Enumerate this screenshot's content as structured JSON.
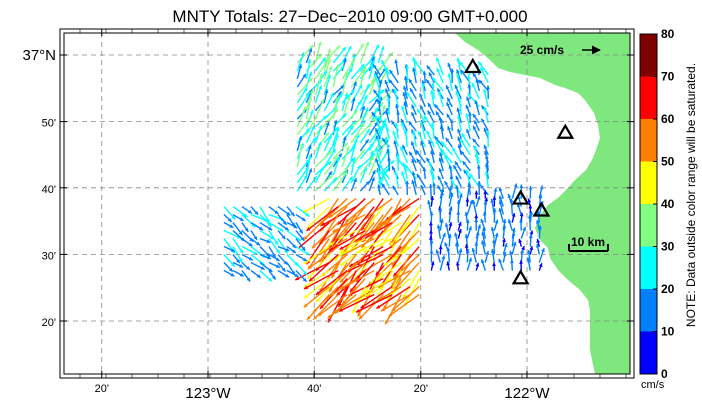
{
  "title": "MNTY Totals: 27−Dec−2010 09:00 GMT+0.000",
  "map": {
    "lon_ticks": [
      {
        "lon": -123.333,
        "label": "20'",
        "major": false
      },
      {
        "lon": -123.0,
        "label": "123°W",
        "major": true
      },
      {
        "lon": -122.667,
        "label": "40'",
        "major": false
      },
      {
        "lon": -122.333,
        "label": "20'",
        "major": false
      },
      {
        "lon": -122.0,
        "label": "122°W",
        "major": true
      }
    ],
    "lat_ticks": [
      {
        "lat": 37.0,
        "label": "37°N",
        "major": true
      },
      {
        "lat": 36.833,
        "label": "50'",
        "major": false
      },
      {
        "lat": 36.667,
        "label": "40'",
        "major": false
      },
      {
        "lat": 36.5,
        "label": "30'",
        "major": false
      },
      {
        "lat": 36.333,
        "label": "20'",
        "major": false
      }
    ],
    "land_color": "#7ee87e",
    "grid": true,
    "reference_vector": {
      "label": "25 cm/s",
      "speed": 25
    },
    "scale_bar": {
      "label": "10 km",
      "km": 10
    },
    "stations": [
      {
        "lon": -122.17,
        "lat": 36.97
      },
      {
        "lon": -121.88,
        "lat": 36.805
      },
      {
        "lon": -122.02,
        "lat": 36.64
      },
      {
        "lon": -121.955,
        "lat": 36.61
      },
      {
        "lon": -122.02,
        "lat": 36.44
      }
    ]
  },
  "colorbar": {
    "ticks": [
      "0",
      "10",
      "20",
      "30",
      "40",
      "50",
      "60",
      "70",
      "80"
    ],
    "colors": [
      "#0000ff",
      "#0080ff",
      "#00ffff",
      "#80ff80",
      "#ffff00",
      "#ff8000",
      "#ff0000",
      "#800000"
    ],
    "unit": "cm/s",
    "note": "NOTE: Data outside color range will be saturated."
  },
  "vector_field": {
    "note": "regional flow: mostly northwest-ward near shore, strong southeast flow offshore",
    "regions": [
      {
        "lon_range": [
          -122.62,
          -122.33
        ],
        "lat_range": [
          36.39,
          36.64
        ],
        "speed": [
          45,
          65
        ],
        "dir_deg": 135
      },
      {
        "lon_range": [
          -122.72,
          -122.46
        ],
        "lat_range": [
          36.64,
          36.98
        ],
        "speed": [
          15,
          35
        ],
        "dir_deg": 300
      },
      {
        "lon_range": [
          -122.46,
          -122.1
        ],
        "lat_range": [
          36.64,
          36.95
        ],
        "speed": [
          10,
          25
        ],
        "dir_deg": 250
      },
      {
        "lon_range": [
          -122.3,
          -121.95
        ],
        "lat_range": [
          36.45,
          36.64
        ],
        "speed": [
          5,
          20
        ],
        "dir_deg": 270
      },
      {
        "lon_range": [
          -122.95,
          -122.7
        ],
        "lat_range": [
          36.45,
          36.62
        ],
        "speed": [
          10,
          25
        ],
        "dir_deg": 40
      }
    ]
  }
}
